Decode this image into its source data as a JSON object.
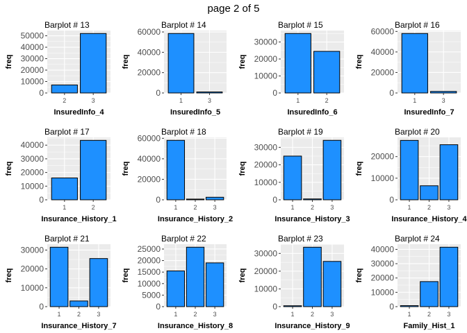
{
  "page_title": "page 2 of 5",
  "colors": {
    "bar_fill": "#1e90ff",
    "panel_bg": "#ebebeb",
    "grid": "#ffffff",
    "bar_stroke": "#000000"
  },
  "chart_data": [
    {
      "type": "bar",
      "title": "Barplot # 13",
      "xlabel": "InsuredInfo_4",
      "ylabel": "freq",
      "categories": [
        "2",
        "3"
      ],
      "values": [
        7000,
        52000
      ],
      "ylim": [
        0,
        54600
      ],
      "yticks": [
        0,
        10000,
        20000,
        30000,
        40000,
        50000
      ],
      "ytick_labels": [
        "0",
        "10000",
        "20000",
        "30000",
        "40000",
        "50000"
      ]
    },
    {
      "type": "bar",
      "title": "Barplot # 14",
      "xlabel": "InsuredInfo_5",
      "ylabel": "freq",
      "categories": [
        "1",
        "3"
      ],
      "values": [
        58500,
        1000
      ],
      "ylim": [
        0,
        61400
      ],
      "yticks": [
        0,
        20000,
        40000,
        60000
      ],
      "ytick_labels": [
        "0",
        "20000",
        "40000",
        "60000"
      ]
    },
    {
      "type": "bar",
      "title": "Barplot # 15",
      "xlabel": "InsuredInfo_6",
      "ylabel": "freq",
      "categories": [
        "1",
        "2"
      ],
      "values": [
        35000,
        24500
      ],
      "ylim": [
        0,
        36750
      ],
      "yticks": [
        0,
        10000,
        20000,
        30000
      ],
      "ytick_labels": [
        "0",
        "10000",
        "20000",
        "30000"
      ]
    },
    {
      "type": "bar",
      "title": "Barplot # 16",
      "xlabel": "InsuredInfo_7",
      "ylabel": "freq",
      "categories": [
        "1",
        "3"
      ],
      "values": [
        58000,
        1500
      ],
      "ylim": [
        0,
        60900
      ],
      "yticks": [
        0,
        20000,
        40000,
        60000
      ],
      "ytick_labels": [
        "0",
        "20000",
        "40000",
        "60000"
      ]
    },
    {
      "type": "bar",
      "title": "Barplot # 17",
      "xlabel": "Insurance_History_1",
      "ylabel": "freq",
      "categories": [
        "1",
        "2"
      ],
      "values": [
        16000,
        43500
      ],
      "ylim": [
        0,
        45700
      ],
      "yticks": [
        0,
        10000,
        20000,
        30000,
        40000
      ],
      "ytick_labels": [
        "0",
        "10000",
        "20000",
        "30000",
        "40000"
      ]
    },
    {
      "type": "bar",
      "title": "Barplot # 18",
      "xlabel": "Insurance_History_2",
      "ylabel": "freq",
      "categories": [
        "1",
        "2",
        "3"
      ],
      "values": [
        58000,
        700,
        2500
      ],
      "ylim": [
        0,
        60900
      ],
      "yticks": [
        0,
        20000,
        40000,
        60000
      ],
      "ytick_labels": [
        "0",
        "20000",
        "40000",
        "60000"
      ]
    },
    {
      "type": "bar",
      "title": "Barplot # 19",
      "xlabel": "Insurance_History_3",
      "ylabel": "freq",
      "categories": [
        "1",
        "2",
        "3"
      ],
      "values": [
        25000,
        500,
        34000
      ],
      "ylim": [
        0,
        35700
      ],
      "yticks": [
        0,
        10000,
        20000,
        30000
      ],
      "ytick_labels": [
        "0",
        "10000",
        "20000",
        "30000"
      ]
    },
    {
      "type": "bar",
      "title": "Barplot # 20",
      "xlabel": "Insurance_History_4",
      "ylabel": "freq",
      "categories": [
        "1",
        "2",
        "3"
      ],
      "values": [
        27500,
        6500,
        25500
      ],
      "ylim": [
        0,
        28900
      ],
      "yticks": [
        0,
        10000,
        20000
      ],
      "ytick_labels": [
        "0",
        "10000",
        "20000"
      ]
    },
    {
      "type": "bar",
      "title": "Barplot # 21",
      "xlabel": "Insurance_History_7",
      "ylabel": "freq",
      "categories": [
        "1",
        "2",
        "3"
      ],
      "values": [
        31500,
        3000,
        25500
      ],
      "ylim": [
        0,
        33100
      ],
      "yticks": [
        0,
        10000,
        20000,
        30000
      ],
      "ytick_labels": [
        "0",
        "10000",
        "20000",
        "30000"
      ]
    },
    {
      "type": "bar",
      "title": "Barplot # 22",
      "xlabel": "Insurance_History_8",
      "ylabel": "freq",
      "categories": [
        "1",
        "2",
        "3"
      ],
      "values": [
        15500,
        25800,
        19000
      ],
      "ylim": [
        0,
        27100
      ],
      "yticks": [
        0,
        5000,
        10000,
        15000,
        20000,
        25000
      ],
      "ytick_labels": [
        "0",
        "5000",
        "10000",
        "15000",
        "20000",
        "25000"
      ]
    },
    {
      "type": "bar",
      "title": "Barplot # 23",
      "xlabel": "Insurance_History_9",
      "ylabel": "freq",
      "categories": [
        "1",
        "2",
        "3"
      ],
      "values": [
        500,
        33500,
        25500
      ],
      "ylim": [
        0,
        35200
      ],
      "yticks": [
        0,
        10000,
        20000,
        30000
      ],
      "ytick_labels": [
        "0",
        "10000",
        "20000",
        "30000"
      ]
    },
    {
      "type": "bar",
      "title": "Barplot # 24",
      "xlabel": "Family_Hist_1",
      "ylabel": "freq",
      "categories": [
        "1",
        "2",
        "3"
      ],
      "values": [
        700,
        17500,
        41500
      ],
      "ylim": [
        0,
        43600
      ],
      "yticks": [
        0,
        10000,
        20000,
        30000,
        40000
      ],
      "ytick_labels": [
        "0",
        "10000",
        "20000",
        "30000",
        "40000"
      ]
    }
  ]
}
